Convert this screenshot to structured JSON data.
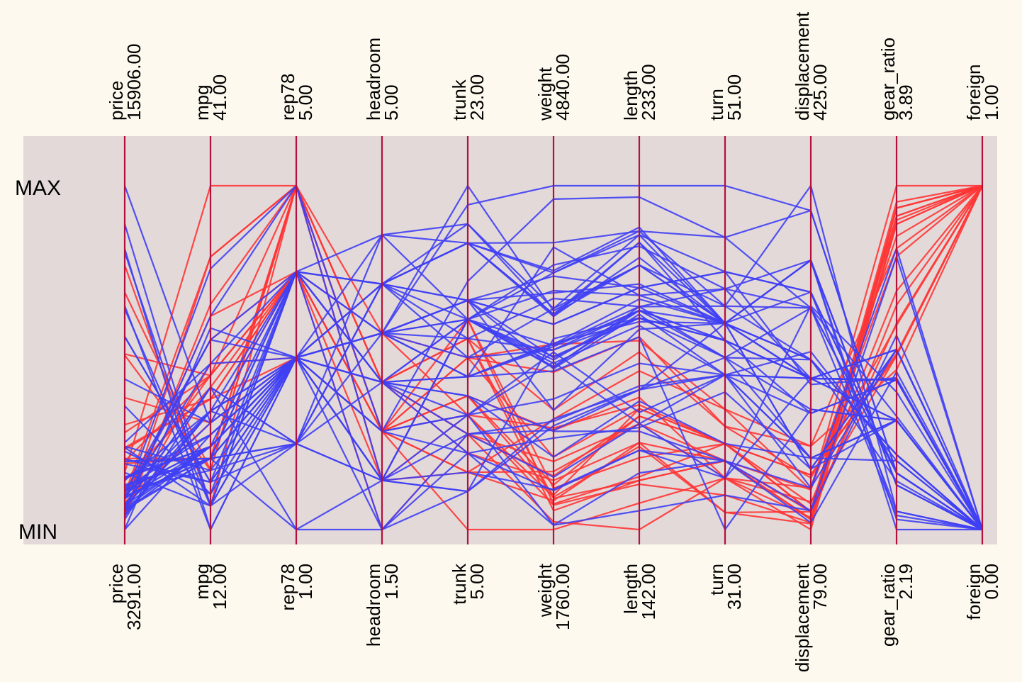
{
  "chart_data": {
    "type": "parallel_coordinates",
    "labels": {
      "max": "MAX",
      "min": "MIN"
    },
    "colors": {
      "background": "#fdf9ee",
      "panel": "#e3d9d9",
      "axis": "#b3103b",
      "foreign": "#ff3535",
      "domestic": "#3f3ff4"
    },
    "axes": [
      {
        "name": "price",
        "max_label": "15906.00",
        "min_label": "3291.00",
        "min": 3291,
        "max": 15906
      },
      {
        "name": "mpg",
        "max_label": "41.00",
        "min_label": "12.00",
        "min": 12,
        "max": 41
      },
      {
        "name": "rep78",
        "max_label": "5.00",
        "min_label": "1.00",
        "min": 1,
        "max": 5
      },
      {
        "name": "headroom",
        "max_label": "5.00",
        "min_label": "1.50",
        "min": 1.5,
        "max": 5
      },
      {
        "name": "trunk",
        "max_label": "23.00",
        "min_label": "5.00",
        "min": 5,
        "max": 23
      },
      {
        "name": "weight",
        "max_label": "4840.00",
        "min_label": "1760.00",
        "min": 1760,
        "max": 4840
      },
      {
        "name": "length",
        "max_label": "233.00",
        "min_label": "142.00",
        "min": 142,
        "max": 233
      },
      {
        "name": "turn",
        "max_label": "51.00",
        "min_label": "31.00",
        "min": 31,
        "max": 51
      },
      {
        "name": "displacement",
        "max_label": "425.00",
        "min_label": "79.00",
        "min": 79,
        "max": 425
      },
      {
        "name": "gear_ratio",
        "max_label": "3.89",
        "min_label": "2.19",
        "min": 2.19,
        "max": 3.89
      },
      {
        "name": "foreign",
        "max_label": "1.00",
        "min_label": "0.00",
        "min": 0,
        "max": 1
      }
    ],
    "series": [
      {
        "group": "domestic",
        "values": [
          4099,
          22,
          3,
          2.5,
          11,
          2930,
          186,
          40,
          121,
          3.58,
          0
        ]
      },
      {
        "group": "domestic",
        "values": [
          4749,
          17,
          3,
          3.0,
          11,
          3350,
          173,
          40,
          258,
          2.53,
          0
        ]
      },
      {
        "group": "domestic",
        "values": [
          3799,
          22,
          3,
          3.0,
          12,
          2640,
          168,
          35,
          121,
          3.08,
          0
        ]
      },
      {
        "group": "domestic",
        "values": [
          4816,
          20,
          3,
          4.5,
          16,
          3250,
          196,
          40,
          196,
          2.93,
          0
        ]
      },
      {
        "group": "domestic",
        "values": [
          7827,
          15,
          4,
          4.0,
          20,
          4080,
          222,
          43,
          350,
          2.41,
          0
        ]
      },
      {
        "group": "domestic",
        "values": [
          5788,
          18,
          3,
          4.0,
          21,
          3670,
          218,
          43,
          231,
          2.73,
          0
        ]
      },
      {
        "group": "domestic",
        "values": [
          4453,
          26,
          3,
          3.0,
          10,
          2230,
          170,
          34,
          304,
          2.87,
          0
        ]
      },
      {
        "group": "domestic",
        "values": [
          5189,
          20,
          3,
          2.0,
          16,
          3280,
          200,
          42,
          196,
          2.93,
          0
        ]
      },
      {
        "group": "domestic",
        "values": [
          10372,
          16,
          3,
          3.5,
          17,
          3880,
          207,
          43,
          231,
          2.93,
          0
        ]
      },
      {
        "group": "domestic",
        "values": [
          4082,
          19,
          3,
          3.5,
          13,
          3400,
          200,
          42,
          231,
          3.08,
          0
        ]
      },
      {
        "group": "domestic",
        "values": [
          11385,
          14,
          3,
          4.0,
          20,
          4330,
          221,
          44,
          425,
          2.28,
          0
        ]
      },
      {
        "group": "domestic",
        "values": [
          14500,
          14,
          2,
          3.5,
          16,
          3900,
          204,
          43,
          350,
          2.19,
          0
        ]
      },
      {
        "group": "domestic",
        "values": [
          15906,
          21,
          3,
          3.0,
          13,
          4290,
          204,
          45,
          350,
          2.24,
          0
        ]
      },
      {
        "group": "domestic",
        "values": [
          3299,
          29,
          3,
          2.5,
          9,
          2110,
          163,
          34,
          231,
          2.93,
          0
        ]
      },
      {
        "group": "domestic",
        "values": [
          5705,
          16,
          4,
          4.0,
          20,
          3690,
          212,
          43,
          250,
          2.56,
          0
        ]
      },
      {
        "group": "domestic",
        "values": [
          4504,
          22,
          3,
          3.0,
          13,
          3180,
          193,
          31,
          200,
          2.73,
          0
        ]
      },
      {
        "group": "domestic",
        "values": [
          5104,
          22,
          2,
          3.0,
          16,
          3220,
          200,
          41,
          200,
          2.73,
          0
        ]
      },
      {
        "group": "domestic",
        "values": [
          3667,
          24,
          2,
          2.0,
          7,
          2750,
          179,
          40,
          151,
          2.73,
          0
        ]
      },
      {
        "group": "domestic",
        "values": [
          3955,
          19,
          3,
          3.5,
          13,
          3430,
          197,
          43,
          250,
          2.56,
          0
        ]
      },
      {
        "group": "domestic",
        "values": [
          3984,
          30,
          5,
          2.0,
          8,
          2120,
          163,
          35,
          98,
          3.54,
          0
        ]
      },
      {
        "group": "domestic",
        "values": [
          4010,
          18,
          2,
          4.0,
          17,
          3600,
          206,
          46,
          318,
          2.47,
          0
        ]
      },
      {
        "group": "domestic",
        "values": [
          5886,
          16,
          2,
          4.0,
          17,
          3600,
          206,
          46,
          318,
          2.47,
          0
        ]
      },
      {
        "group": "domestic",
        "values": [
          6342,
          17,
          2,
          4.5,
          21,
          3740,
          220,
          46,
          225,
          2.94,
          0
        ]
      },
      {
        "group": "domestic",
        "values": [
          4389,
          28,
          4,
          1.5,
          9,
          1800,
          147,
          33,
          98,
          3.15,
          0
        ]
      },
      {
        "group": "domestic",
        "values": [
          4187,
          21,
          3,
          1.5,
          10,
          2650,
          179,
          43,
          140,
          3.08,
          0
        ]
      },
      {
        "group": "domestic",
        "values": [
          11497,
          12,
          3,
          3.5,
          22,
          4840,
          233,
          51,
          400,
          2.47,
          0
        ]
      },
      {
        "group": "domestic",
        "values": [
          13594,
          12,
          3,
          2.5,
          18,
          4720,
          230,
          48,
          400,
          2.47,
          0
        ]
      },
      {
        "group": "domestic",
        "values": [
          13466,
          14,
          3,
          3.5,
          15,
          3830,
          201,
          41,
          302,
          2.47,
          0
        ]
      },
      {
        "group": "domestic",
        "values": [
          3829,
          22,
          4,
          3.0,
          9,
          2580,
          169,
          39,
          140,
          2.73,
          0
        ]
      },
      {
        "group": "domestic",
        "values": [
          5379,
          14,
          4,
          3.5,
          16,
          4060,
          221,
          48,
          302,
          2.47,
          0
        ]
      },
      {
        "group": "domestic",
        "values": [
          6165,
          15,
          3,
          3.5,
          23,
          3720,
          212,
          44,
          302,
          2.26,
          0
        ]
      },
      {
        "group": "domestic",
        "values": [
          4516,
          18,
          3,
          4.0,
          15,
          3370,
          198,
          41,
          250,
          2.43,
          0
        ]
      },
      {
        "group": "domestic",
        "values": [
          6303,
          14,
          4,
          3.0,
          16,
          4130,
          217,
          45,
          302,
          2.75,
          0
        ]
      },
      {
        "group": "domestic",
        "values": [
          3291,
          20,
          3,
          3.5,
          17,
          2830,
          195,
          43,
          140,
          3.08,
          0
        ]
      },
      {
        "group": "domestic",
        "values": [
          8814,
          21,
          4,
          4.0,
          20,
          4060,
          220,
          43,
          350,
          2.41,
          0
        ]
      },
      {
        "group": "domestic",
        "values": [
          5172,
          19,
          3,
          2.0,
          16,
          3310,
          198,
          42,
          231,
          2.93,
          0
        ]
      },
      {
        "group": "domestic",
        "values": [
          4733,
          19,
          3,
          3.5,
          17,
          3300,
          198,
          42,
          231,
          2.93,
          0
        ]
      },
      {
        "group": "domestic",
        "values": [
          4890,
          18,
          4,
          4.5,
          20,
          3690,
          218,
          42,
          231,
          2.73,
          0
        ]
      },
      {
        "group": "domestic",
        "values": [
          4181,
          19,
          4,
          3.5,
          14,
          3370,
          200,
          43,
          231,
          3.08,
          0
        ]
      },
      {
        "group": "domestic",
        "values": [
          4195,
          24,
          1,
          2.0,
          10,
          2730,
          180,
          40,
          151,
          2.73,
          0
        ]
      },
      {
        "group": "domestic",
        "values": [
          10371,
          16,
          3,
          3.5,
          17,
          4030,
          206,
          43,
          350,
          2.41,
          0
        ]
      },
      {
        "group": "domestic",
        "values": [
          4647,
          28,
          3,
          2.0,
          11,
          3260,
          170,
          40,
          231,
          2.93,
          0
        ]
      },
      {
        "group": "domestic",
        "values": [
          4425,
          34,
          5,
          2.5,
          11,
          1800,
          157,
          35,
          86,
          2.97,
          0
        ]
      },
      {
        "group": "domestic",
        "values": [
          4482,
          18,
          3,
          4.0,
          16,
          3410,
          201,
          44,
          250,
          2.56,
          0
        ]
      },
      {
        "group": "domestic",
        "values": [
          6486,
          26,
          4,
          3.0,
          12,
          2410,
          176,
          36,
          151,
          2.53,
          0
        ]
      },
      {
        "group": "domestic",
        "values": [
          4060,
          18,
          2,
          4.0,
          20,
          3670,
          214,
          43,
          318,
          2.28,
          0
        ]
      },
      {
        "group": "domestic",
        "values": [
          5798,
          18,
          4,
          4.0,
          14,
          3740,
          212,
          43,
          250,
          2.56,
          0
        ]
      },
      {
        "group": "domestic",
        "values": [
          4934,
          18,
          1,
          1.5,
          7,
          3470,
          198,
          42,
          231,
          3.08,
          0
        ]
      },
      {
        "group": "domestic",
        "values": [
          5222,
          19,
          3,
          2.0,
          16,
          3210,
          201,
          45,
          231,
          2.93,
          0
        ]
      },
      {
        "group": "domestic",
        "values": [
          4723,
          19,
          3,
          3.5,
          17,
          3200,
          199,
          40,
          231,
          2.93,
          0
        ]
      },
      {
        "group": "domestic",
        "values": [
          4424,
          19,
          3,
          3.5,
          13,
          3420,
          203,
          43,
          231,
          3.08,
          0
        ]
      },
      {
        "group": "domestic",
        "values": [
          4172,
          24,
          2,
          2.0,
          7,
          2690,
          179,
          41,
          151,
          2.73,
          0
        ]
      },
      {
        "group": "foreign",
        "values": [
          9690,
          17,
          5,
          3.0,
          15,
          2830,
          189,
          37,
          131,
          3.2,
          1
        ]
      },
      {
        "group": "foreign",
        "values": [
          6295,
          23,
          3,
          2.5,
          12,
          2070,
          174,
          36,
          97,
          3.7,
          1
        ]
      },
      {
        "group": "foreign",
        "values": [
          9735,
          25,
          4,
          2.5,
          12,
          2650,
          177,
          34,
          121,
          3.64,
          1
        ]
      },
      {
        "group": "foreign",
        "values": [
          6229,
          23,
          4,
          1.5,
          10,
          2370,
          170,
          35,
          119,
          3.89,
          1
        ]
      },
      {
        "group": "foreign",
        "values": [
          4589,
          35,
          5,
          2.0,
          8,
          2020,
          165,
          32,
          85,
          3.7,
          1
        ]
      },
      {
        "group": "foreign",
        "values": [
          5079,
          24,
          4,
          2.5,
          8,
          2280,
          170,
          34,
          107,
          3.05,
          1
        ]
      },
      {
        "group": "foreign",
        "values": [
          8129,
          21,
          4,
          2.5,
          8,
          2750,
          184,
          38,
          119,
          3.54,
          1
        ]
      },
      {
        "group": "foreign",
        "values": [
          4296,
          21,
          3,
          2.5,
          16,
          2130,
          161,
          36,
          105,
          3.37,
          1
        ]
      },
      {
        "group": "foreign",
        "values": [
          5799,
          25,
          5,
          3.0,
          10,
          2240,
          172,
          36,
          97,
          3.74,
          1
        ]
      },
      {
        "group": "foreign",
        "values": [
          4499,
          28,
          4,
          2.5,
          5,
          1760,
          149,
          34,
          91,
          3.3,
          1
        ]
      },
      {
        "group": "foreign",
        "values": [
          3995,
          30,
          4,
          3.5,
          11,
          1980,
          154,
          33,
          86,
          3.78,
          1
        ]
      },
      {
        "group": "foreign",
        "values": [
          12990,
          14,
          5,
          3.5,
          14,
          3420,
          192,
          38,
          163,
          3.58,
          1
        ]
      },
      {
        "group": "foreign",
        "values": [
          3895,
          26,
          3,
          3.0,
          10,
          1830,
          142,
          34,
          79,
          3.72,
          1
        ]
      },
      {
        "group": "foreign",
        "values": [
          3798,
          35,
          5,
          2.5,
          11,
          2050,
          164,
          32,
          97,
          3.81,
          1
        ]
      },
      {
        "group": "foreign",
        "values": [
          5899,
          18,
          5,
          2.5,
          14,
          2410,
          174,
          36,
          134,
          3.06,
          1
        ]
      },
      {
        "group": "foreign",
        "values": [
          3748,
          31,
          5,
          3.0,
          9,
          2200,
          165,
          35,
          97,
          3.21,
          1
        ]
      },
      {
        "group": "foreign",
        "values": [
          5719,
          18,
          5,
          2.0,
          11,
          2670,
          175,
          36,
          134,
          3.05,
          1
        ]
      },
      {
        "group": "foreign",
        "values": [
          7140,
          23,
          4,
          2.5,
          12,
          2160,
          172,
          36,
          97,
          3.74,
          1
        ]
      },
      {
        "group": "foreign",
        "values": [
          5397,
          41,
          5,
          3.0,
          15,
          2040,
          155,
          35,
          90,
          3.78,
          1
        ]
      },
      {
        "group": "foreign",
        "values": [
          4697,
          25,
          4,
          3.0,
          15,
          1930,
          155,
          35,
          89,
          3.78,
          1
        ]
      },
      {
        "group": "foreign",
        "values": [
          6850,
          25,
          4,
          2.0,
          16,
          1990,
          156,
          36,
          97,
          3.78,
          1
        ]
      },
      {
        "group": "foreign",
        "values": [
          11995,
          17,
          5,
          2.5,
          14,
          3170,
          193,
          37,
          163,
          2.98,
          1
        ]
      }
    ]
  }
}
